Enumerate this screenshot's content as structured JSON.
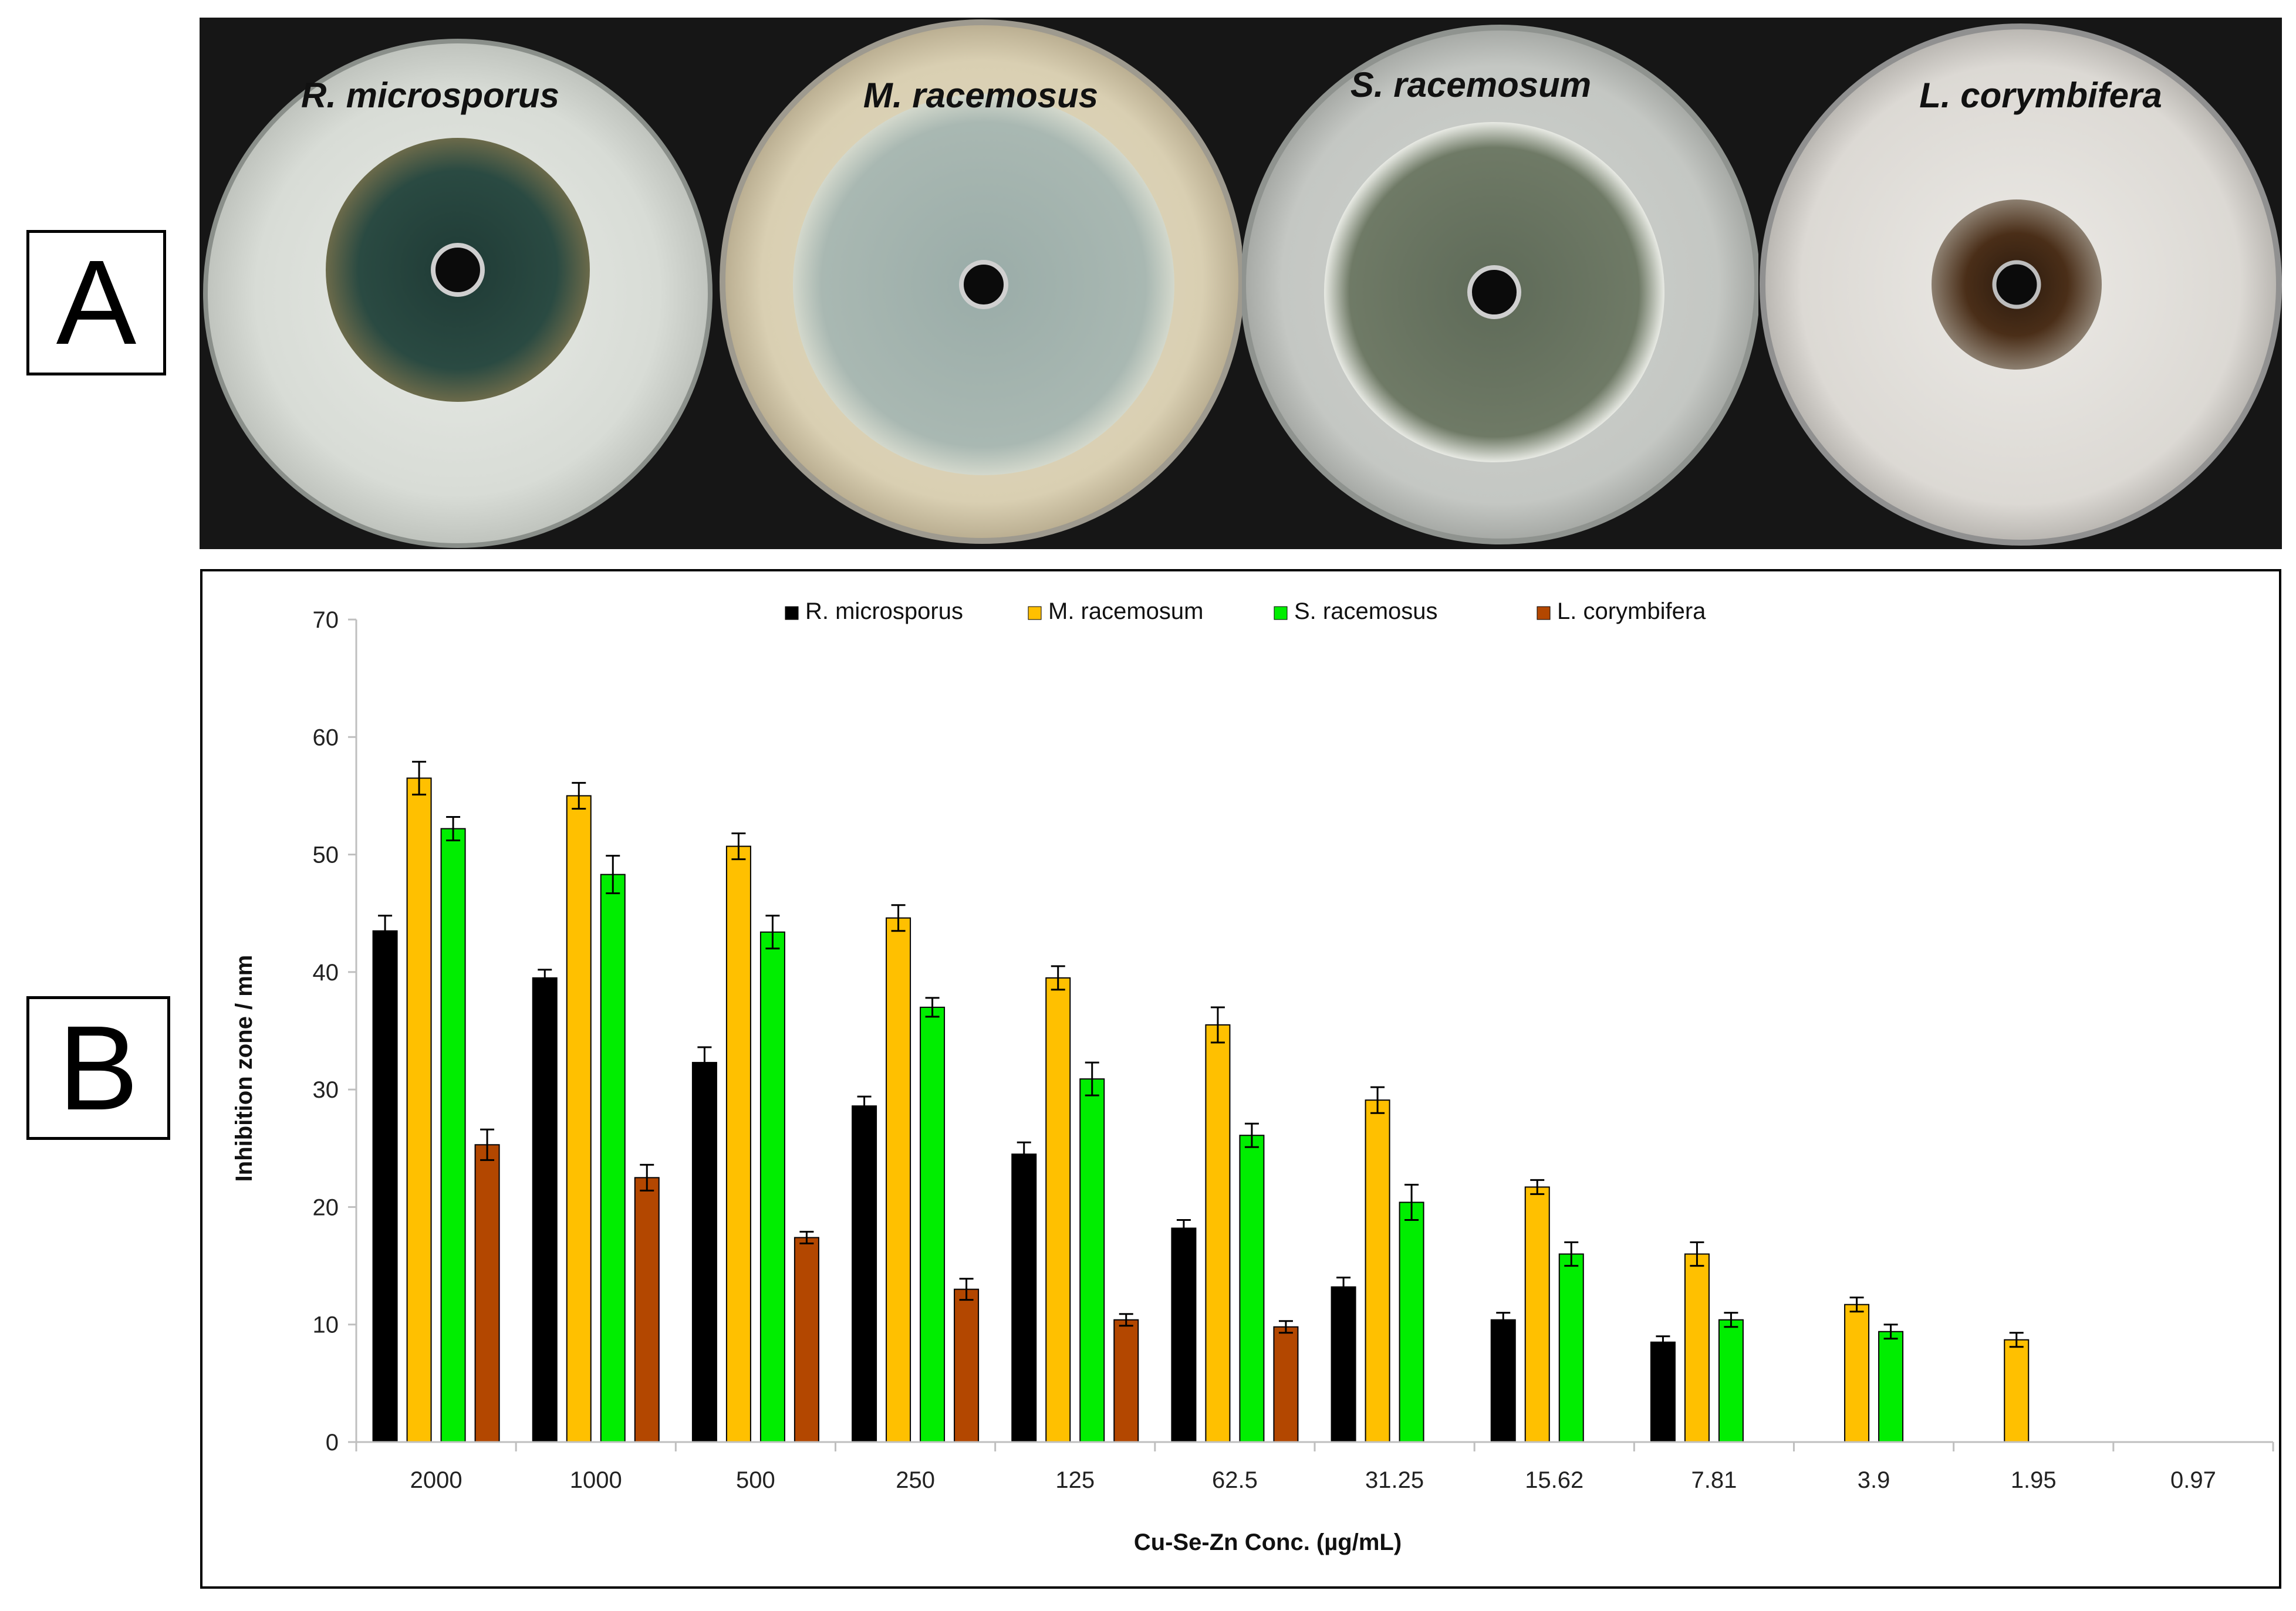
{
  "panels": {
    "a_label": "A",
    "b_label": "B"
  },
  "photos": [
    {
      "title": "R. microsporus"
    },
    {
      "title": "M. racemosus"
    },
    {
      "title": "S. racemosum"
    },
    {
      "title": "L. corymbifera"
    }
  ],
  "chart_data": {
    "type": "bar",
    "title": "",
    "xlabel": "Cu-Se-Zn Conc. (µg/mL)",
    "ylabel": "Inhibition zone / mm",
    "ylim": [
      0,
      70
    ],
    "yticks": [
      0,
      10,
      20,
      30,
      40,
      50,
      60,
      70
    ],
    "legend_position": "top-center",
    "categories": [
      "2000",
      "1000",
      "500",
      "250",
      "125",
      "62.5",
      "31.25",
      "15.62",
      "7.81",
      "3.9",
      "1.95",
      "0.97"
    ],
    "series": [
      {
        "name": "R. microsporus",
        "color": "#000000",
        "values": [
          43.5,
          39.5,
          32.3,
          28.6,
          24.5,
          18.2,
          13.2,
          10.4,
          8.5,
          0,
          0,
          0
        ],
        "errors": [
          1.3,
          0.7,
          1.3,
          0.8,
          1.0,
          0.7,
          0.8,
          0.6,
          0.5,
          0,
          0,
          0
        ]
      },
      {
        "name": "M. racemosum",
        "color": "#FFC000",
        "values": [
          56.5,
          55.0,
          50.7,
          44.6,
          39.5,
          35.5,
          29.1,
          21.7,
          16.0,
          11.7,
          8.7,
          0
        ],
        "errors": [
          1.4,
          1.1,
          1.1,
          1.1,
          1.0,
          1.5,
          1.1,
          0.6,
          1.0,
          0.6,
          0.6,
          0
        ]
      },
      {
        "name": "S. racemosus",
        "color": "#00EE00",
        "values": [
          52.2,
          48.3,
          43.4,
          37.0,
          30.9,
          26.1,
          20.4,
          16.0,
          10.4,
          9.4,
          0,
          0
        ],
        "errors": [
          1.0,
          1.6,
          1.4,
          0.8,
          1.4,
          1.0,
          1.5,
          1.0,
          0.6,
          0.6,
          0,
          0
        ]
      },
      {
        "name": "L. corymbifera",
        "color": "#B34700",
        "values": [
          25.3,
          22.5,
          17.4,
          13.0,
          10.4,
          9.8,
          0,
          0,
          0,
          0,
          0,
          0
        ],
        "errors": [
          1.3,
          1.1,
          0.5,
          0.9,
          0.5,
          0.5,
          0,
          0,
          0,
          0,
          0,
          0
        ]
      }
    ]
  }
}
